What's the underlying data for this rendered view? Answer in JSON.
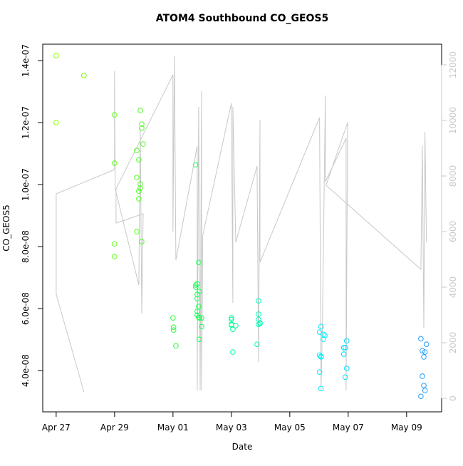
{
  "chart_data": {
    "type": "scatter",
    "title": "ATOM4 Southbound CO_GEOS5",
    "xlabel": "Date",
    "ylabel": "CO_GEOS5",
    "x": [
      0,
      0,
      0.95,
      2,
      2,
      2,
      2,
      2.76,
      2.76,
      2.76,
      2.83,
      2.83,
      2.83,
      2.88,
      2.88,
      2.88,
      2.93,
      2.93,
      2.93,
      2.98,
      4,
      4.02,
      4.02,
      4.1,
      4.78,
      4.78,
      4.78,
      4.83,
      4.83,
      4.83,
      4.83,
      4.83,
      4.88,
      4.88,
      4.88,
      4.9,
      4.9,
      4.9,
      4.98,
      4.98,
      6,
      6,
      6,
      6,
      6.05,
      6.05,
      6.15,
      6.88,
      6.93,
      6.93,
      6.93,
      6.93,
      6.98,
      6.98,
      9.02,
      9.02,
      9.02,
      9.07,
      9.07,
      9.07,
      9.07,
      9.15,
      9.15,
      9.2,
      9.85,
      9.85,
      9.9,
      9.9,
      9.95,
      9.95,
      12.49,
      12.49,
      12.54,
      12.54,
      12.59,
      12.59,
      12.63,
      12.63,
      12.68
    ],
    "values": [
      1.416e-07,
      1.2e-07,
      1.352e-07,
      1.225e-07,
      1.069e-07,
      8.09e-08,
      7.68e-08,
      1.11e-07,
      1.023e-07,
      8.48e-08,
      1.08e-07,
      9.79e-08,
      9.54e-08,
      1.239e-07,
      1.002e-07,
      9.88e-08,
      1.195e-07,
      1.182e-07,
      8.16e-08,
      1.131e-07,
      5.7e-08,
      5.4e-08,
      5.31e-08,
      4.8e-08,
      1.064e-07,
      6.76e-08,
      6.69e-08,
      6.8e-08,
      6.46e-08,
      6.32e-08,
      5.91e-08,
      5.79e-08,
      7.49e-08,
      6.07e-08,
      5.72e-08,
      5.01e-08,
      6.55e-08,
      5.7e-08,
      5.7e-08,
      5.42e-08,
      5.7e-08,
      5.65e-08,
      5.49e-08,
      5.47e-08,
      5.33e-08,
      4.6e-08,
      5.45e-08,
      4.85e-08,
      6.25e-08,
      5.82e-08,
      5.65e-08,
      5.49e-08,
      5.52e-08,
      5.54e-08,
      5.24e-08,
      4.5e-08,
      3.95e-08,
      5.42e-08,
      4.46e-08,
      4.44e-08,
      3.42e-08,
      5.01e-08,
      5.17e-08,
      5.13e-08,
      4.74e-08,
      4.53e-08,
      4.74e-08,
      3.79e-08,
      4.96e-08,
      4.07e-08,
      3.17e-08,
      5.03e-08,
      4.64e-08,
      3.82e-08,
      4.44e-08,
      3.52e-08,
      4.6e-08,
      3.36e-08,
      4.85e-08
    ],
    "point_colors": [
      "#88ff00",
      "#88ff00",
      "#77ff00",
      "#5eff10",
      "#5eff10",
      "#5eff10",
      "#5eff10",
      "#4dff20",
      "#4dff20",
      "#4dff20",
      "#4dff20",
      "#4dff20",
      "#4dff20",
      "#4dff20",
      "#4dff20",
      "#4dff20",
      "#4dff20",
      "#4dff20",
      "#4dff20",
      "#4dff20",
      "#2bff3a",
      "#2bff3a",
      "#2bff3a",
      "#2bff3a",
      "#1cff55",
      "#1cff55",
      "#1cff55",
      "#1cff55",
      "#1cff55",
      "#1cff55",
      "#1cff55",
      "#1cff55",
      "#1cff55",
      "#1cff55",
      "#1cff55",
      "#1cff55",
      "#1cff55",
      "#1cff55",
      "#1cff55",
      "#1cff55",
      "#00ff99",
      "#00ff99",
      "#00ff99",
      "#00ff99",
      "#00ff99",
      "#00ff99",
      "#00ff99",
      "#00ffb8",
      "#00ffb8",
      "#00ffb8",
      "#00ffb8",
      "#00ffb8",
      "#00ffb8",
      "#00ffb8",
      "#00f0ff",
      "#00f0ff",
      "#00f0ff",
      "#00f0ff",
      "#00f0ff",
      "#00f0ff",
      "#00f0ff",
      "#00f0ff",
      "#00f0ff",
      "#00f0ff",
      "#00dcff",
      "#00dcff",
      "#00dcff",
      "#00dcff",
      "#00dcff",
      "#00dcff",
      "#1e9eff",
      "#1e9eff",
      "#1e9eff",
      "#1e9eff",
      "#1e9eff",
      "#1e9eff",
      "#1e9eff",
      "#1e9eff",
      "#1e9eff"
    ],
    "overlay": {
      "axis": "y2",
      "color": "#c8c8c8",
      "x": [
        0.95,
        0,
        0,
        2,
        2,
        2.02,
        2.83,
        2.88,
        2.93,
        2.98,
        2.05,
        2.05,
        4,
        4,
        4.05,
        4.1,
        4.83,
        4.83,
        4.88,
        4.93,
        4.98,
        4.98,
        5.02,
        6,
        6.05,
        6.05,
        6.15,
        6.88,
        6.93,
        6.98,
        6.98,
        9.02,
        9.07,
        9.12,
        9.22,
        9.22,
        9.93,
        9.93,
        9.98,
        9.24,
        12.49,
        12.54,
        12.59,
        12.63,
        12.68
      ],
      "values": [
        231,
        3744,
        7359,
        8231,
        11769,
        7538,
        4077,
        9718,
        3051,
        6641,
        6308,
        7538,
        11641,
        6000,
        12333,
        4974,
        9077,
        282,
        10487,
        282,
        11051,
        282,
        5872,
        10615,
        3436,
        10487,
        5615,
        8359,
        1308,
        10025,
        4897,
        10102,
        282,
        2795,
        10897,
        7795,
        9359,
        282,
        9923,
        7667,
        4641,
        9077,
        2538,
        9590,
        5615
      ]
    },
    "xlim": [
      -0.46,
      13.2
    ],
    "xticks": [
      {
        "value": 0,
        "label": "Apr 27"
      },
      {
        "value": 2,
        "label": "Apr 29"
      },
      {
        "value": 4,
        "label": "May 01"
      },
      {
        "value": 6,
        "label": "May 03"
      },
      {
        "value": 8,
        "label": "May 05"
      },
      {
        "value": 10,
        "label": "May 07"
      },
      {
        "value": 12,
        "label": "May 09"
      }
    ],
    "ylim": [
      2.67e-08,
      1.453e-07
    ],
    "yticks": [
      {
        "value": 4e-08,
        "label": "4.0e-08"
      },
      {
        "value": 6e-08,
        "label": "6.0e-08"
      },
      {
        "value": 8e-08,
        "label": "8.0e-08"
      },
      {
        "value": 1e-07,
        "label": "1.0e-07"
      },
      {
        "value": 1.2e-07,
        "label": "1.2e-07"
      },
      {
        "value": 1.4e-07,
        "label": "1.4e-07"
      }
    ],
    "y2lim": [
      -487,
      12744
    ],
    "y2ticks": [
      0,
      2000,
      4000,
      6000,
      8000,
      10000,
      12000
    ],
    "y2_color": "#c8c8c8"
  }
}
